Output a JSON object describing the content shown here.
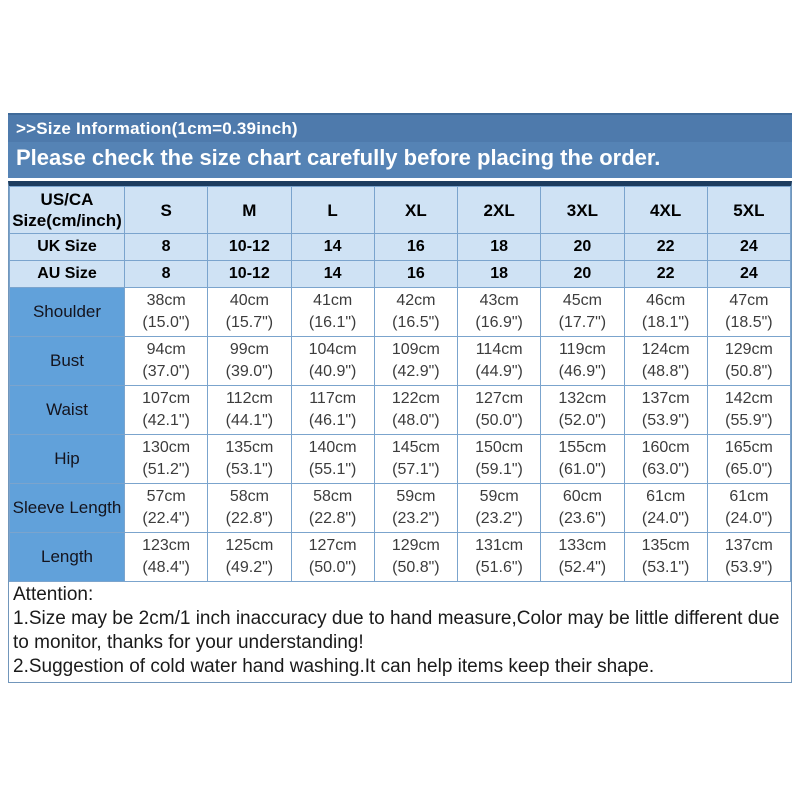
{
  "banner": {
    "line1": ">>Size Information(1cm=0.39inch)",
    "line2": "Please check the size chart carefully before placing the order."
  },
  "table": {
    "corner_header": "US/CA Size(cm/inch)",
    "size_columns": [
      "S",
      "M",
      "L",
      "XL",
      "2XL",
      "3XL",
      "4XL",
      "5XL"
    ],
    "size_rows": [
      {
        "label": "UK Size",
        "values": [
          "8",
          "10-12",
          "14",
          "16",
          "18",
          "20",
          "22",
          "24"
        ]
      },
      {
        "label": "AU Size",
        "values": [
          "8",
          "10-12",
          "14",
          "16",
          "18",
          "20",
          "22",
          "24"
        ]
      }
    ],
    "measurement_rows": [
      {
        "label": "Shoulder",
        "cm": [
          "38cm",
          "40cm",
          "41cm",
          "42cm",
          "43cm",
          "45cm",
          "46cm",
          "47cm"
        ],
        "inch": [
          "(15.0\")",
          "(15.7\")",
          "(16.1\")",
          "(16.5\")",
          "(16.9\")",
          "(17.7\")",
          "(18.1\")",
          "(18.5\")"
        ]
      },
      {
        "label": "Bust",
        "cm": [
          "94cm",
          "99cm",
          "104cm",
          "109cm",
          "114cm",
          "119cm",
          "124cm",
          "129cm"
        ],
        "inch": [
          "(37.0\")",
          "(39.0\")",
          "(40.9\")",
          "(42.9\")",
          "(44.9\")",
          "(46.9\")",
          "(48.8\")",
          "(50.8\")"
        ]
      },
      {
        "label": "Waist",
        "cm": [
          "107cm",
          "112cm",
          "117cm",
          "122cm",
          "127cm",
          "132cm",
          "137cm",
          "142cm"
        ],
        "inch": [
          "(42.1\")",
          "(44.1\")",
          "(46.1\")",
          "(48.0\")",
          "(50.0\")",
          "(52.0\")",
          "(53.9\")",
          "(55.9\")"
        ]
      },
      {
        "label": "Hip",
        "cm": [
          "130cm",
          "135cm",
          "140cm",
          "145cm",
          "150cm",
          "155cm",
          "160cm",
          "165cm"
        ],
        "inch": [
          "(51.2\")",
          "(53.1\")",
          "(55.1\")",
          "(57.1\")",
          "(59.1\")",
          "(61.0\")",
          "(63.0\")",
          "(65.0\")"
        ]
      },
      {
        "label": "Sleeve Length",
        "cm": [
          "57cm",
          "58cm",
          "58cm",
          "59cm",
          "59cm",
          "60cm",
          "61cm",
          "61cm"
        ],
        "inch": [
          "(22.4\")",
          "(22.8\")",
          "(22.8\")",
          "(23.2\")",
          "(23.2\")",
          "(23.6\")",
          "(24.0\")",
          "(24.0\")"
        ]
      },
      {
        "label": "Length",
        "cm": [
          "123cm",
          "125cm",
          "127cm",
          "129cm",
          "131cm",
          "133cm",
          "135cm",
          "137cm"
        ],
        "inch": [
          "(48.4\")",
          "(49.2\")",
          "(50.0\")",
          "(50.8\")",
          "(51.6\")",
          "(52.4\")",
          "(53.1\")",
          "(53.9\")"
        ]
      }
    ]
  },
  "attention": {
    "title": "Attention:",
    "note1": "1.Size may be 2cm/1 inch inaccuracy due to hand measure,Color may be little different due to monitor, thanks for your understanding!",
    "note2": "2.Suggestion of cold water hand washing.It can help items keep their shape."
  },
  "colors": {
    "banner_bg": "#5583b5",
    "header_cell_bg": "#cfe2f4",
    "label_cell_bg": "#61a1da",
    "grid_line": "#7ba4cd",
    "table_top_border": "#1d3c5e"
  }
}
